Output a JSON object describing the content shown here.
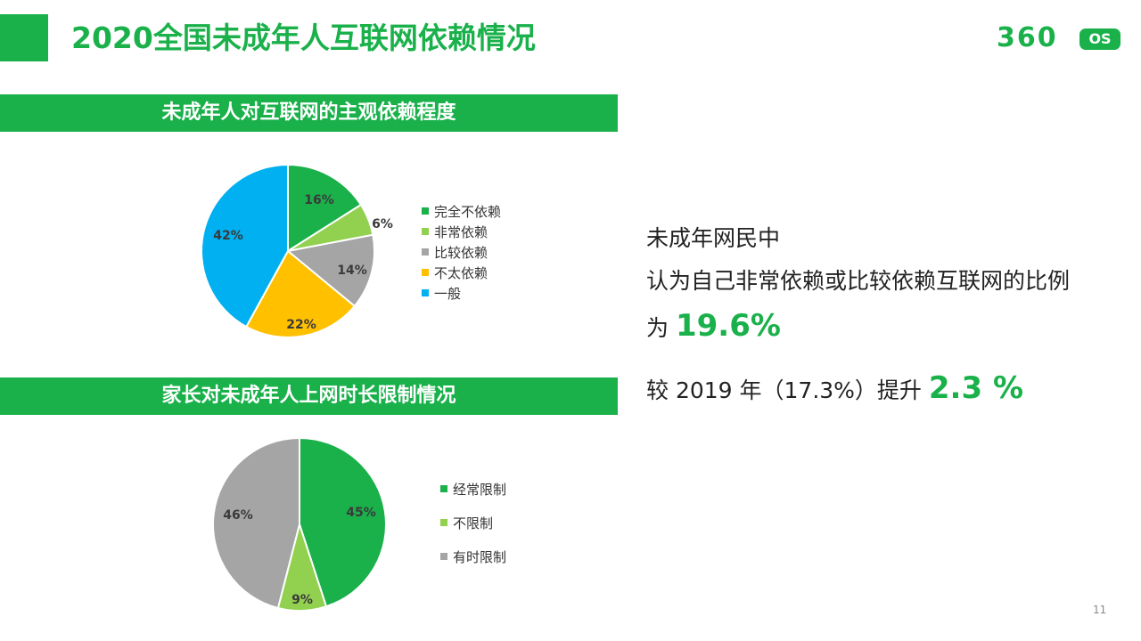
{
  "title": "2020全国未成年人互联网依赖情况",
  "logo": {
    "number": "360",
    "badge": "OS"
  },
  "section1_title": "未成年人对互联网的主观依赖程度",
  "section2_title": "家长对未成年人上网时长限制情况",
  "colors": {
    "accent": "#1ab14b",
    "dark_green": "#1ab14b",
    "light_green": "#92d050",
    "gray": "#a5a5a5",
    "orange": "#ffc000",
    "blue": "#00b0f0"
  },
  "chart_data": [
    {
      "type": "pie",
      "categories": [
        "完全不依赖",
        "非常依赖",
        "比较依赖",
        "不太依赖",
        "一般"
      ],
      "values": [
        16,
        6,
        14,
        22,
        42
      ],
      "labels": [
        "16%",
        "6%",
        "14%",
        "22%",
        "42%"
      ],
      "colors": [
        "#1ab14b",
        "#92d050",
        "#a5a5a5",
        "#ffc000",
        "#00b0f0"
      ],
      "legend": "right"
    },
    {
      "type": "pie",
      "categories": [
        "经常限制",
        "不限制",
        "有时限制"
      ],
      "values": [
        45,
        9,
        46
      ],
      "labels": [
        "45%",
        "9%",
        "46%"
      ],
      "colors": [
        "#1ab14b",
        "#92d050",
        "#a5a5a5"
      ],
      "legend": "right"
    }
  ],
  "summary": {
    "line1": "未成年网民中",
    "line2": "认为自己非常依赖或比较依赖互联网的比例",
    "line3_prefix": "为",
    "line3_value": "19.6%",
    "line4_prefix": "较 2019 年（17.3%）提升",
    "line4_value": "2.3 %"
  },
  "page_number": "11"
}
